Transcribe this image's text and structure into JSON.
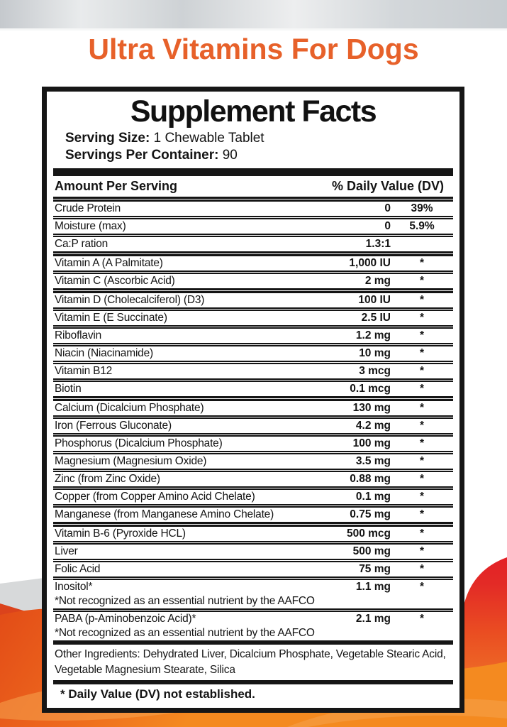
{
  "page": {
    "title": "Ultra Vitamins For Dogs"
  },
  "panel": {
    "title": "Supplement Facts",
    "serving_size_label": "Serving Size:",
    "serving_size_value": "1 Chewable Tablet",
    "servings_per_container_label": "Servings Per Container:",
    "servings_per_container_value": "90",
    "columns": {
      "amount": "Amount Per Serving",
      "dv": "% Daily Value (DV)"
    },
    "rows": [
      {
        "name": "Crude Protein",
        "amount": "0",
        "dv": "39%"
      },
      {
        "name": "Moisture (max)",
        "amount": "0",
        "dv": "5.9%"
      },
      {
        "name": "Ca:P ration",
        "amount": "1.3:1",
        "dv": "",
        "thick": true
      },
      {
        "name": "Vitamin A (A Palmitate)",
        "amount": "1,000 IU",
        "dv": "*"
      },
      {
        "name": "Vitamin C (Ascorbic Acid)",
        "amount": "2 mg",
        "dv": "*",
        "thick": true
      },
      {
        "name": "Vitamin D (Cholecalciferol) (D3)",
        "amount": "100 IU",
        "dv": "*"
      },
      {
        "name": "Vitamin E (E Succinate)",
        "amount": "2.5 IU",
        "dv": "*"
      },
      {
        "name": "Riboflavin",
        "amount": "1.2 mg",
        "dv": "*"
      },
      {
        "name": "Niacin (Niacinamide)",
        "amount": "10 mg",
        "dv": "*"
      },
      {
        "name": "Vitamin B12",
        "amount": "3 mcg",
        "dv": "*"
      },
      {
        "name": "Biotin",
        "amount": "0.1 mcg",
        "dv": "*",
        "thick": true
      },
      {
        "name": "Calcium (Dicalcium Phosphate)",
        "amount": "130 mg",
        "dv": "*"
      },
      {
        "name": "Iron (Ferrous Gluconate)",
        "amount": "4.2 mg",
        "dv": "*"
      },
      {
        "name": "Phosphorus (Dicalcium Phosphate)",
        "amount": "100 mg",
        "dv": "*"
      },
      {
        "name": "Magnesium (Magnesium Oxide)",
        "amount": "3.5 mg",
        "dv": "*"
      },
      {
        "name": "Zinc (from Zinc Oxide)",
        "amount": "0.88 mg",
        "dv": "*"
      },
      {
        "name": "Copper (from Copper Amino Acid Chelate)",
        "amount": "0.1 mg",
        "dv": "*"
      },
      {
        "name": "Manganese (from Manganese Amino Chelate)",
        "amount": "0.75 mg",
        "dv": "*",
        "thick": true
      },
      {
        "name": "Vitamin B-6 (Pyroxide HCL)",
        "amount": "500 mcg",
        "dv": "*"
      },
      {
        "name": "Liver",
        "amount": "500 mg",
        "dv": "*"
      },
      {
        "name": "Folic Acid",
        "amount": "75 mg",
        "dv": "*"
      },
      {
        "name": "Inositol*",
        "amount": "1.1 mg",
        "dv": "*",
        "note": "*Not recognized as an essential nutrient by the AAFCO"
      },
      {
        "name": "PABA (p-Aminobenzoic Acid)*",
        "amount": "2.1 mg",
        "dv": "*",
        "note": "*Not recognized as an essential nutrient by the AAFCO"
      }
    ],
    "other_ingredients": "Other Ingredients: Dehydrated Liver, Dicalcium Phosphate, Vegetable Stearic Acid, Vegetable Magnesium Stearate, Silica",
    "footnote": "* Daily Value (DV) not established."
  },
  "colors": {
    "accent_orange": "#e7612a",
    "wave_red": "#e32026",
    "wave_orange_dark": "#db431c",
    "wave_orange": "#ef6b21",
    "wave_orange_light": "#f6a44f",
    "silver_bar": "#ced2d5",
    "ink": "#161616"
  }
}
